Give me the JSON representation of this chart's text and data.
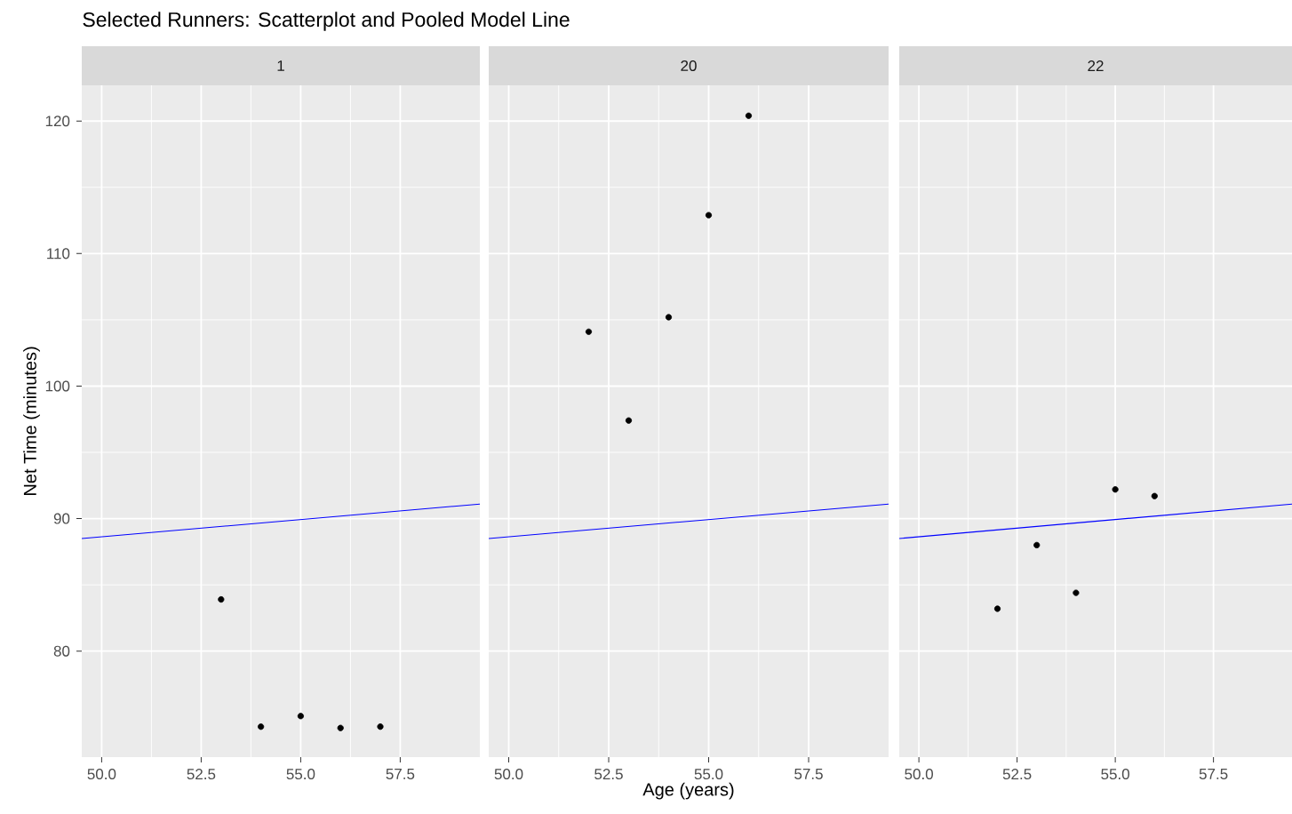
{
  "chart_data": [
    {
      "type": "scatter",
      "title": "Selected Runners: Scatterplot and Pooled Model Line",
      "subtitle": "1",
      "ylabel": "Net Time (minutes)",
      "xlim": [
        49.5,
        59.5
      ],
      "ylim": [
        72,
        122.7
      ],
      "xticks": [
        {
          "value": 50,
          "label": "50.0"
        },
        {
          "value": 52.5,
          "label": "52.5"
        },
        {
          "value": 55,
          "label": "55.0"
        },
        {
          "value": 57.5,
          "label": "57.5"
        }
      ],
      "yticks": [
        80,
        90,
        100,
        110,
        120
      ],
      "grid": true,
      "series": [
        {
          "color": "#000000",
          "marker": "circle",
          "x": [
            53,
            54,
            55,
            56,
            57
          ],
          "values": [
            83.9,
            74.3,
            75.1,
            74.2,
            74.3
          ]
        },
        {
          "type": "line",
          "color": "#0000ff",
          "x": [
            49.5,
            59.5
          ],
          "values": [
            88.5,
            91.1
          ]
        }
      ]
    },
    {
      "type": "scatter",
      "subtitle": "20",
      "xlabel": "Age (years)",
      "xlim": [
        49.5,
        59.5
      ],
      "ylim": [
        72,
        122.7
      ],
      "xticks": [
        {
          "value": 50,
          "label": "50.0"
        },
        {
          "value": 52.5,
          "label": "52.5"
        },
        {
          "value": 55,
          "label": "55.0"
        },
        {
          "value": 57.5,
          "label": "57.5"
        }
      ],
      "yticks": [
        80,
        90,
        100,
        110,
        120
      ],
      "grid": true,
      "tick_labels": "x",
      "series": [
        {
          "color": "#000000",
          "marker": "circle",
          "x": [
            52,
            53,
            54,
            55,
            56
          ],
          "values": [
            104.1,
            97.4,
            105.2,
            112.9,
            120.4
          ]
        },
        {
          "type": "line",
          "color": "#0000ff",
          "x": [
            49.5,
            59.5
          ],
          "values": [
            88.5,
            91.1
          ]
        }
      ]
    },
    {
      "type": "scatter",
      "subtitle": "22",
      "xlim": [
        49.5,
        59.5
      ],
      "ylim": [
        72,
        122.7
      ],
      "xticks": [
        {
          "value": 50,
          "label": "50.0"
        },
        {
          "value": 52.5,
          "label": "52.5"
        },
        {
          "value": 55,
          "label": "55.0"
        },
        {
          "value": 57.5,
          "label": "57.5"
        }
      ],
      "yticks": [
        80,
        90,
        100,
        110,
        120
      ],
      "grid": true,
      "tick_labels": "x",
      "series": [
        {
          "color": "#000000",
          "marker": "circle",
          "x": [
            52,
            53,
            54,
            55,
            56
          ],
          "values": [
            83.2,
            88.0,
            84.4,
            92.2,
            91.7
          ]
        },
        {
          "type": "line",
          "color": "#0000ff",
          "x": [
            49.5,
            59.5
          ],
          "values": [
            88.5,
            91.1
          ]
        }
      ]
    }
  ]
}
